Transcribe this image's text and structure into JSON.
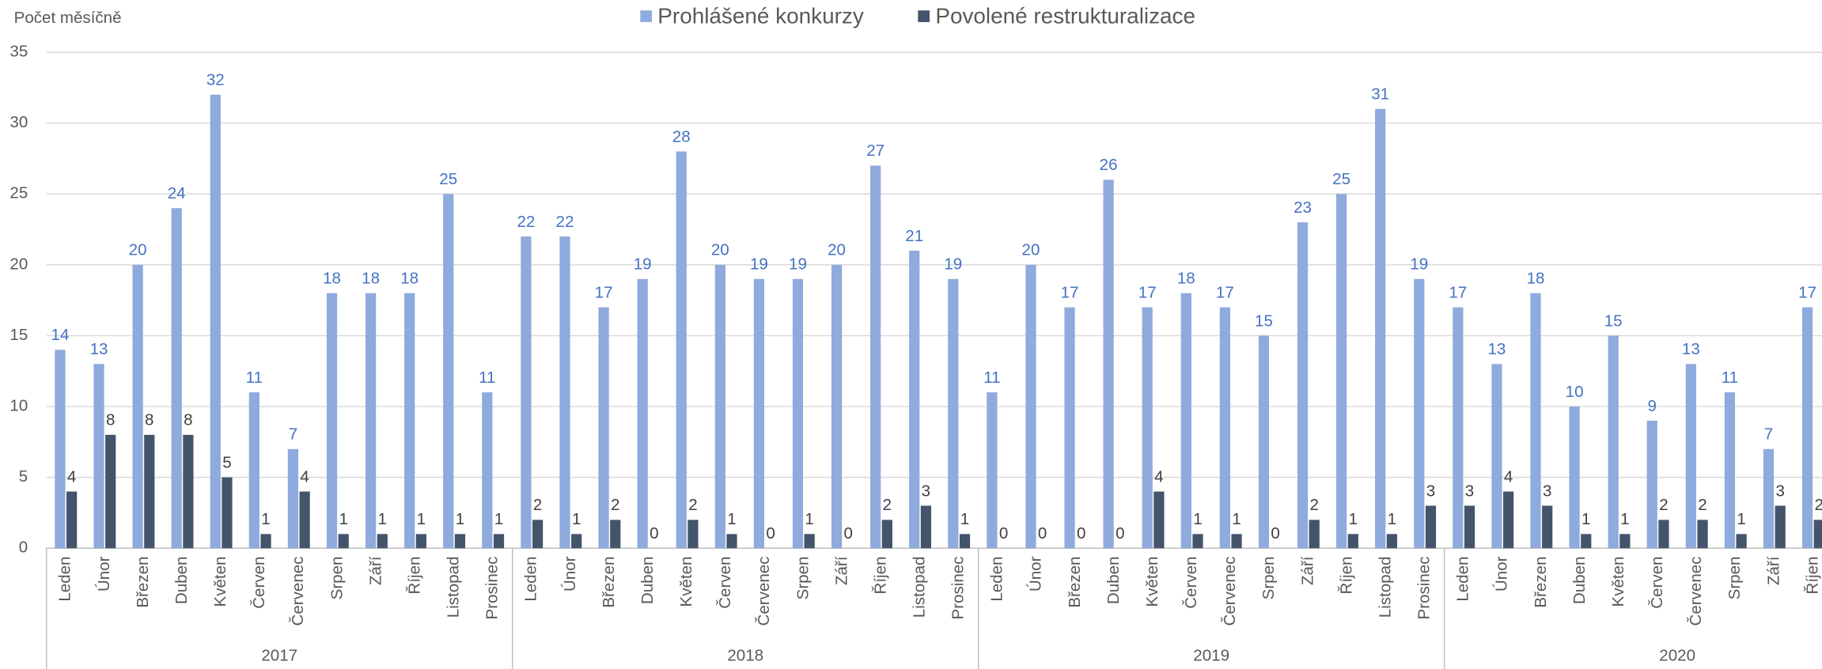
{
  "chart_data": {
    "type": "bar",
    "y_axis_label": "Počet měsíčně",
    "groups": [
      {
        "name": "2017",
        "categories": [
          "Leden",
          "Únor",
          "Březen",
          "Duben",
          "Květen",
          "Červen",
          "Červenec",
          "Srpen",
          "Září",
          "Říjen",
          "Listopad",
          "Prosinec"
        ]
      },
      {
        "name": "2018",
        "categories": [
          "Leden",
          "Únor",
          "Březen",
          "Duben",
          "Květen",
          "Červen",
          "Červenec",
          "Srpen",
          "Září",
          "Říjen",
          "Listopad",
          "Prosinec"
        ]
      },
      {
        "name": "2019",
        "categories": [
          "Leden",
          "Únor",
          "Březen",
          "Duben",
          "Květen",
          "Červen",
          "Červenec",
          "Srpen",
          "Září",
          "Říjen",
          "Listopad",
          "Prosinec"
        ]
      },
      {
        "name": "2020",
        "categories": [
          "Leden",
          "Únor",
          "Březen",
          "Duben",
          "Květen",
          "Červen",
          "Červenec",
          "Srpen",
          "Září",
          "Říjen"
        ]
      }
    ],
    "series": [
      {
        "name": "Prohlášené konkurzy",
        "color": "#8faadc",
        "label_color": "#4472c4",
        "values": [
          14,
          13,
          20,
          24,
          32,
          11,
          7,
          18,
          18,
          18,
          25,
          11,
          22,
          22,
          17,
          19,
          28,
          20,
          19,
          19,
          20,
          27,
          21,
          19,
          11,
          20,
          17,
          26,
          17,
          18,
          17,
          15,
          23,
          25,
          31,
          19,
          17,
          13,
          18,
          10,
          15,
          9,
          13,
          11,
          7,
          17
        ]
      },
      {
        "name": "Povolené restrukturalizace",
        "color": "#44546a",
        "label_color": "#404040",
        "values": [
          4,
          8,
          8,
          8,
          5,
          1,
          4,
          1,
          1,
          1,
          1,
          1,
          2,
          1,
          2,
          0,
          2,
          1,
          0,
          1,
          0,
          2,
          3,
          1,
          0,
          0,
          0,
          0,
          4,
          1,
          1,
          0,
          2,
          1,
          1,
          3,
          3,
          4,
          3,
          1,
          1,
          2,
          2,
          1,
          3,
          2
        ]
      }
    ],
    "ylim": [
      0,
      35
    ],
    "yticks": [
      0,
      5,
      10,
      15,
      20,
      25,
      30,
      35
    ],
    "grid": true,
    "legend": "top"
  }
}
